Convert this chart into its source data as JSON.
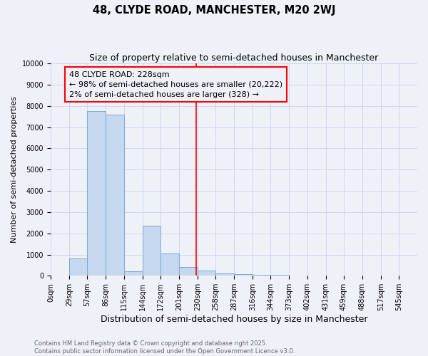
{
  "title1": "48, CLYDE ROAD, MANCHESTER, M20 2WJ",
  "title2": "Size of property relative to semi-detached houses in Manchester",
  "xlabel": "Distribution of semi-detached houses by size in Manchester",
  "ylabel": "Number of semi-detached properties",
  "bins": [
    0,
    29,
    57,
    86,
    115,
    144,
    172,
    201,
    230,
    258,
    287,
    316,
    344,
    373,
    402,
    431,
    459,
    488,
    517,
    545,
    574
  ],
  "counts": [
    0,
    800,
    7750,
    7600,
    200,
    2350,
    1050,
    430,
    250,
    100,
    80,
    30,
    50,
    10,
    5,
    5,
    0,
    0,
    0,
    0
  ],
  "bar_color": "#c5d8f0",
  "bar_edge_color": "#7aabcf",
  "vline_x": 228,
  "vline_color": "red",
  "annotation_box_text": "48 CLYDE ROAD: 228sqm\n← 98% of semi-detached houses are smaller (20,222)\n2% of semi-detached houses are larger (328) →",
  "annotation_box_color": "red",
  "ylim": [
    0,
    10000
  ],
  "yticks": [
    0,
    1000,
    2000,
    3000,
    4000,
    5000,
    6000,
    7000,
    8000,
    9000,
    10000
  ],
  "footnote": "Contains HM Land Registry data © Crown copyright and database right 2025.\nContains public sector information licensed under the Open Government Licence v3.0.",
  "bg_color": "#eef2f8",
  "grid_color": "#c8d4e8",
  "title_fontsize": 10.5,
  "subtitle_fontsize": 9,
  "tick_fontsize": 7,
  "ylabel_fontsize": 8,
  "xlabel_fontsize": 9,
  "footnote_fontsize": 6,
  "annotation_fontsize": 8
}
